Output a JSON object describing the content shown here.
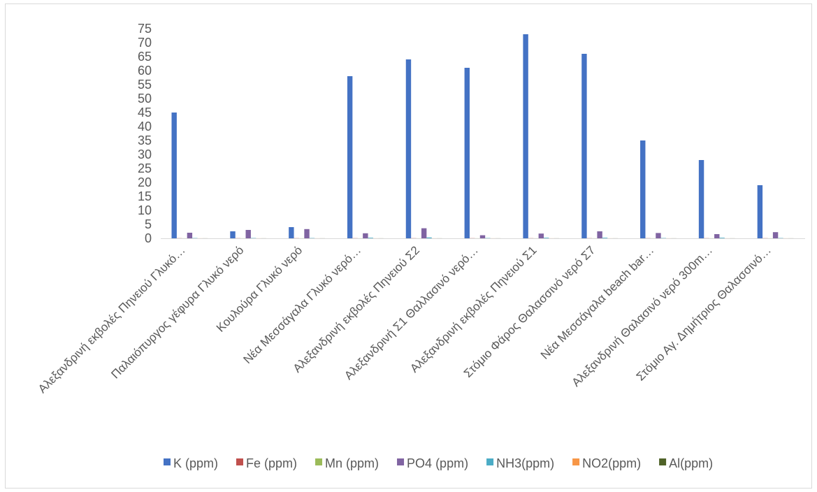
{
  "chart_data": {
    "type": "bar",
    "categories": [
      "Αλεξανδρινή εκβολές Πηνειού Γλυκό…",
      "Παλαιόπυργος γέφυρα Γλυκό νερό",
      "Κουλούρα Γλυκό νερό",
      "Νέα Μεσσάγαλα Γλυκό νερό…",
      "Αλεξανδρινή εκβολές Πηνειού Σ2",
      "Αλεξανδρινή Σ1 Θαλλασινό νερό…",
      "Αλεξανδρινή εκβολές Πηνειού Σ1",
      "Στόμιο Φάρος Θαλασσινό νερό Σ7",
      "Νέα Μεσσάγαλα beach bar…",
      "Αλεξανδρινή Θαλασινό νερό 300m…",
      "Στόμιο Αγ. Δημήτριος Θαλασσινό…"
    ],
    "series": [
      {
        "name": "K (ppm)",
        "color": "#4472c4",
        "values": [
          45,
          2.5,
          4,
          58,
          64,
          61,
          73,
          66,
          35,
          28,
          19
        ]
      },
      {
        "name": "Fe (ppm)",
        "color": "#c0504d",
        "values": [
          0.05,
          0.05,
          0.05,
          0.05,
          0.05,
          0.05,
          0.05,
          0.05,
          0.05,
          0.05,
          0.05
        ]
      },
      {
        "name": "Mn (ppm)",
        "color": "#9bbb59",
        "values": [
          0.02,
          0.02,
          0.02,
          0.02,
          0.02,
          0.02,
          0.02,
          0.02,
          0.02,
          0.02,
          0.02
        ]
      },
      {
        "name": "PO4 (ppm)",
        "color": "#8064a2",
        "values": [
          2,
          3,
          3.3,
          1.8,
          3.6,
          1.1,
          1.7,
          2.5,
          1.9,
          1.5,
          2.2
        ]
      },
      {
        "name": "NH3(ppm)",
        "color": "#4bacc6",
        "values": [
          0.1,
          0.1,
          0.1,
          0.2,
          0.3,
          0.1,
          0.2,
          0.2,
          0.1,
          0.2,
          0.1
        ]
      },
      {
        "name": "NO2(ppm)",
        "color": "#f79646",
        "values": [
          0.02,
          0.02,
          0.02,
          0.02,
          0.02,
          0.02,
          0.02,
          0.02,
          0.02,
          0.02,
          0.02
        ]
      },
      {
        "name": "Al(ppm)",
        "color": "#4f6228",
        "values": [
          0.02,
          0.02,
          0.02,
          0.02,
          0.02,
          0.02,
          0.02,
          0.02,
          0.02,
          0.02,
          0.02
        ]
      }
    ],
    "yticks": [
      0,
      5,
      10,
      15,
      20,
      25,
      30,
      35,
      40,
      45,
      50,
      55,
      60,
      65,
      70,
      75
    ],
    "ylim": [
      0,
      75
    ],
    "grid": false,
    "legend_position": "bottom"
  }
}
